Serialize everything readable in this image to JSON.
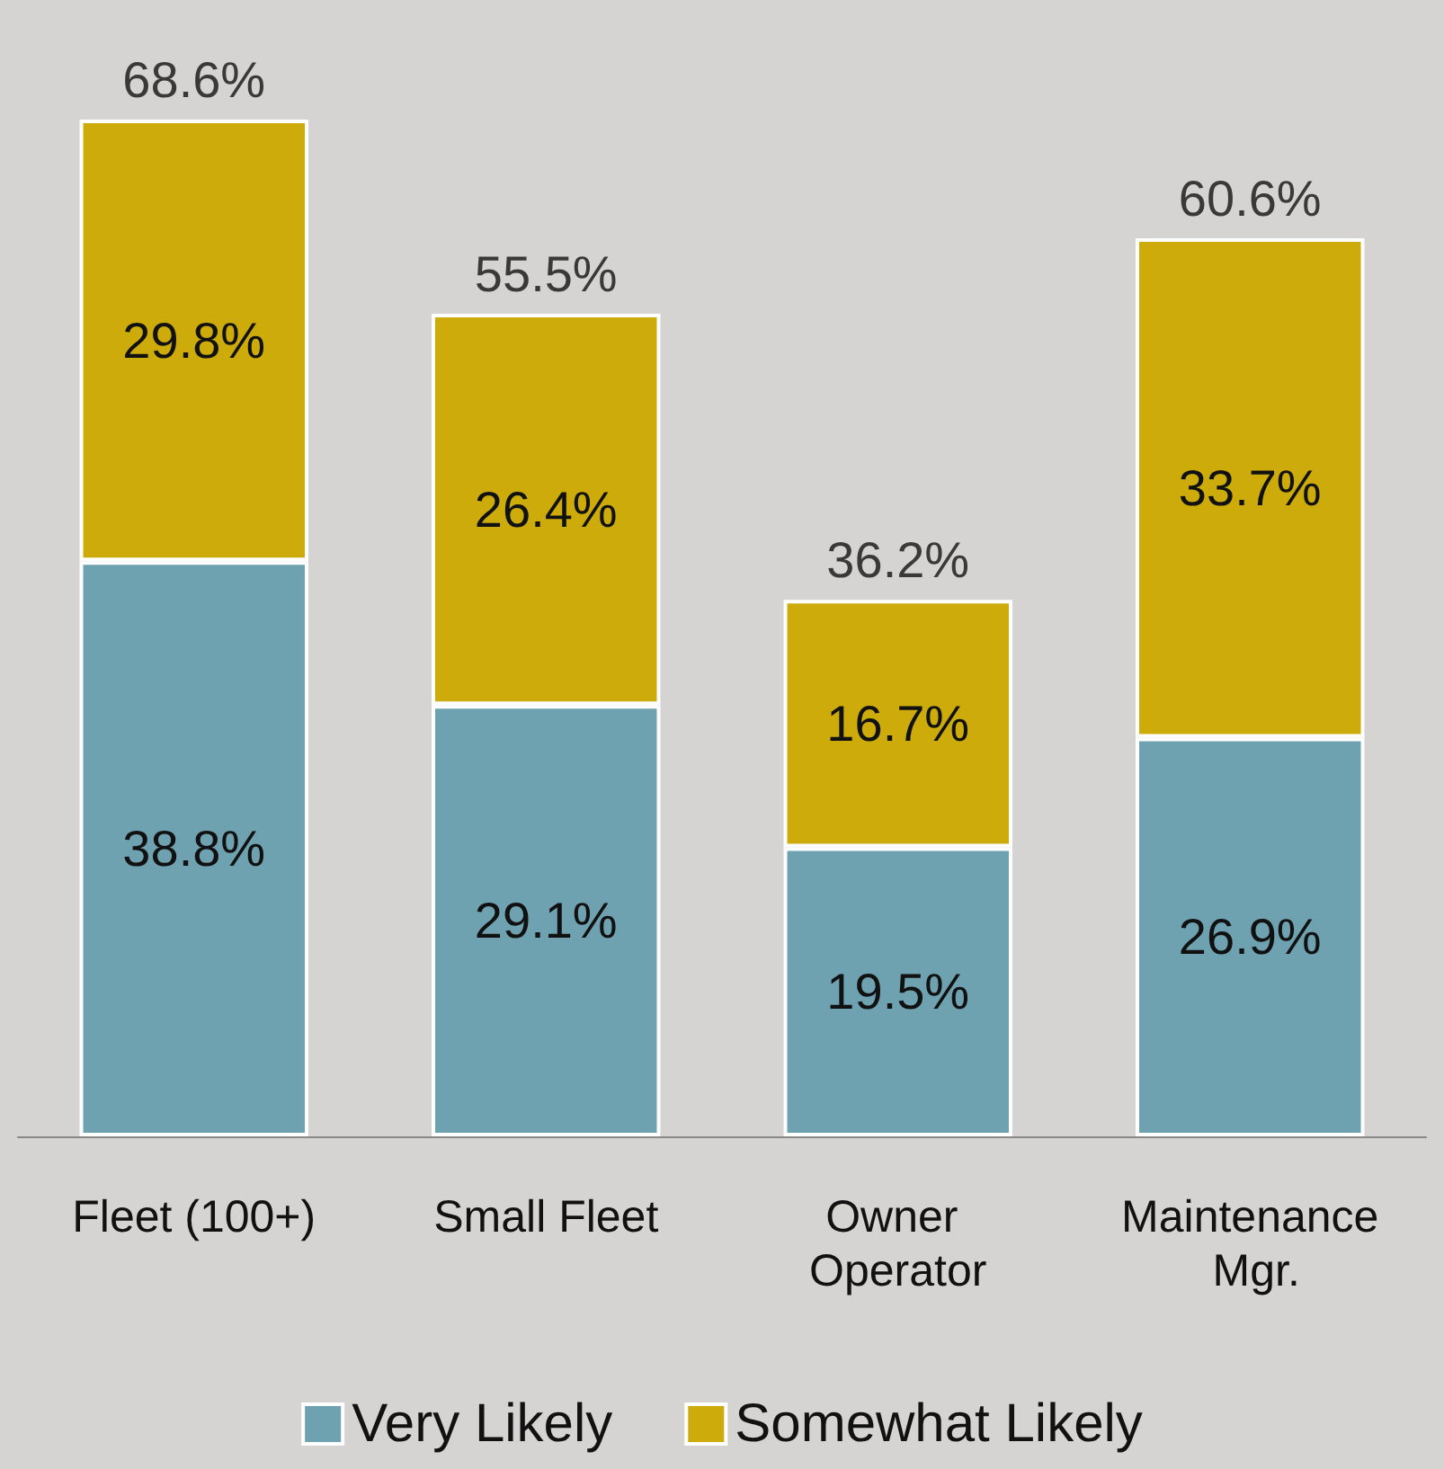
{
  "chart_data": {
    "type": "bar",
    "stacked": true,
    "legend": "bottom",
    "categories": [
      "Fleet (100+)",
      "Small Fleet",
      "Owner Operator",
      "Maintenance Mgr."
    ],
    "series": [
      {
        "name": "Very Likely",
        "color": "#6fa2b1",
        "values": [
          38.8,
          29.1,
          19.5,
          26.9
        ],
        "value_labels": [
          "38.8%",
          "29.1%",
          "19.5%",
          "26.9%"
        ]
      },
      {
        "name": "Somewhat Likely",
        "color": "#ccab0b",
        "values": [
          29.8,
          26.4,
          16.7,
          33.7
        ],
        "value_labels": [
          "29.8%",
          "26.4%",
          "16.7%",
          "33.7%"
        ]
      }
    ],
    "totals": [
      "68.6%",
      "55.5%",
      "36.2%",
      "60.6%"
    ]
  }
}
